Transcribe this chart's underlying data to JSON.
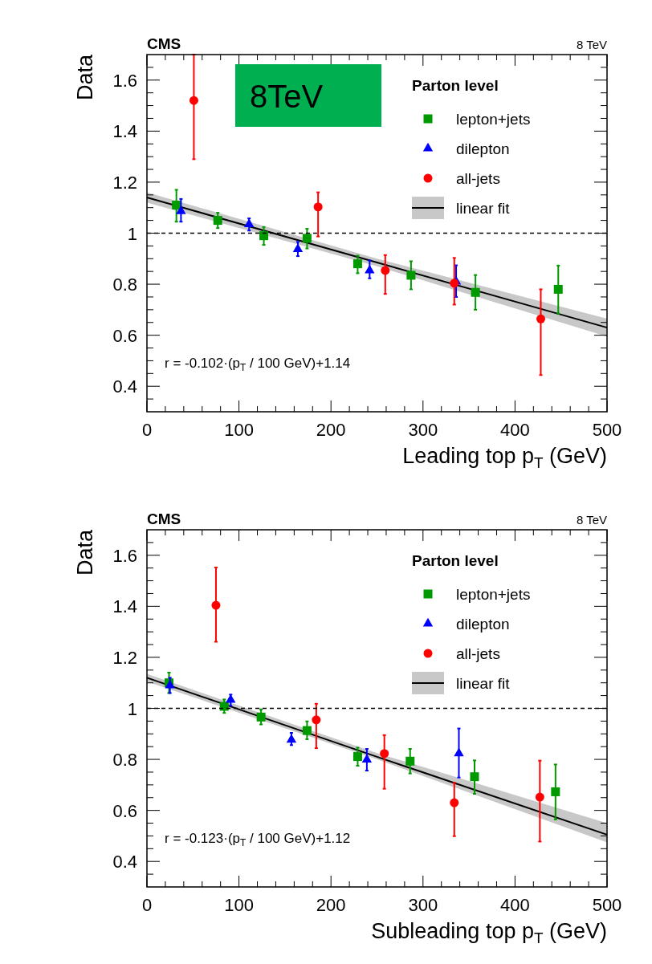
{
  "chart_data": [
    {
      "type": "scatter",
      "ylabel": "Data",
      "xlabel": "Leading top p$_{T}$ (GeV)",
      "legend_title": "Parton level",
      "legend": "top right",
      "xlim": [
        0,
        500
      ],
      "ylim": [
        0.3,
        1.7
      ],
      "xticks": [
        0,
        {
          "value": 20,
          "label": null
        },
        {
          "value": 40,
          "label": null
        },
        {
          "value": 60,
          "label": null
        },
        {
          "value": 80,
          "label": null
        },
        100,
        {
          "value": 120,
          "label": null
        },
        {
          "value": 140,
          "label": null
        },
        {
          "value": 160,
          "label": null
        },
        {
          "value": 180,
          "label": null
        },
        200,
        {
          "value": 220,
          "label": null
        },
        {
          "value": 240,
          "label": null
        },
        {
          "value": 260,
          "label": null
        },
        {
          "value": 280,
          "label": null
        },
        300,
        {
          "value": 320,
          "label": null
        },
        {
          "value": 340,
          "label": null
        },
        {
          "value": 360,
          "label": null
        },
        {
          "value": 380,
          "label": null
        },
        400,
        {
          "value": 420,
          "label": null
        },
        {
          "value": 440,
          "label": null
        },
        {
          "value": 460,
          "label": null
        },
        {
          "value": 480,
          "label": null
        },
        500
      ],
      "yticks": [
        {
          "value": 0.35,
          "label": null
        },
        0.4,
        {
          "value": 0.45,
          "label": null
        },
        {
          "value": 0.5,
          "label": null
        },
        {
          "value": 0.55,
          "label": null
        },
        0.6,
        {
          "value": 0.65,
          "label": null
        },
        {
          "value": 0.7,
          "label": null
        },
        {
          "value": 0.75,
          "label": null
        },
        0.8,
        {
          "value": 0.85,
          "label": null
        },
        {
          "value": 0.9,
          "label": null
        },
        {
          "value": 0.95,
          "label": null
        },
        1,
        {
          "value": 1.05,
          "label": null
        },
        {
          "value": 1.1,
          "label": null
        },
        {
          "value": 1.15,
          "label": null
        },
        1.2,
        {
          "value": 1.25,
          "label": null
        },
        {
          "value": 1.3,
          "label": null
        },
        {
          "value": 1.35,
          "label": null
        },
        1.4,
        {
          "value": 1.45,
          "label": null
        },
        {
          "value": 1.5,
          "label": null
        },
        {
          "value": 1.55,
          "label": null
        },
        1.6,
        {
          "value": 1.65,
          "label": null
        }
      ],
      "ref_lines": [
        {
          "axis": "y",
          "value": 1,
          "line_style": "dashed",
          "color": "#000000"
        }
      ],
      "annotations": [
        "CMS",
        "8 TeV",
        "r = -0.102·(p$_{T}$ / 100 GeV)+1.14",
        "8TeV"
      ],
      "series": [
        {
          "name": "lepton+jets",
          "marker": "square",
          "color": "#009900",
          "x": [
            32,
            77,
            127,
            174,
            229,
            287,
            357,
            447
          ],
          "values": [
            1.11,
            1.05,
            0.99,
            0.98,
            0.88,
            0.835,
            0.768,
            0.78
          ],
          "errors": [
            [
              1.045,
              1.17
            ],
            [
              1.02,
              1.08
            ],
            [
              0.954,
              1.024
            ],
            [
              0.94,
              1.017
            ],
            [
              0.843,
              0.912
            ],
            [
              0.78,
              0.89
            ],
            [
              0.7,
              0.836
            ],
            [
              0.685,
              0.873
            ]
          ]
        },
        {
          "name": "dilepton",
          "marker": "triangle",
          "color": "#0000ff",
          "x": [
            37,
            111,
            164,
            242,
            336
          ],
          "values": [
            1.086,
            1.035,
            0.937,
            0.854,
            0.81
          ],
          "errors": [
            [
              1.045,
              1.134
            ],
            [
              1.01,
              1.058
            ],
            [
              0.91,
              0.966
            ],
            [
              0.823,
              0.893
            ],
            [
              0.75,
              0.874
            ]
          ]
        },
        {
          "name": "all-jets",
          "marker": "circle",
          "color": "#ff0000",
          "x": [
            51,
            186,
            259,
            334,
            428
          ],
          "values": [
            1.52,
            1.103,
            0.854,
            0.804,
            0.664
          ],
          "errors": [
            [
              1.29,
              1.7
            ],
            [
              0.987,
              1.16
            ],
            [
              0.762,
              0.914
            ],
            [
              0.72,
              0.903
            ],
            [
              0.444,
              0.78
            ]
          ]
        },
        {
          "name": "linear fit",
          "type": "line",
          "color": "#000000",
          "x": [
            0,
            250,
            500
          ],
          "values": [
            1.14,
            0.885,
            0.63
          ],
          "lower": [
            1.12,
            0.87,
            0.595
          ],
          "upper": [
            1.16,
            0.9,
            0.665
          ]
        }
      ]
    },
    {
      "type": "scatter",
      "ylabel": "Data",
      "xlabel": "Subleading top p$_{T}$ (GeV)",
      "legend_title": "Parton level",
      "legend": "top right",
      "xlim": [
        0,
        500
      ],
      "ylim": [
        0.3,
        1.7
      ],
      "xticks": [
        0,
        {
          "value": 20,
          "label": null
        },
        {
          "value": 40,
          "label": null
        },
        {
          "value": 60,
          "label": null
        },
        {
          "value": 80,
          "label": null
        },
        100,
        {
          "value": 120,
          "label": null
        },
        {
          "value": 140,
          "label": null
        },
        {
          "value": 160,
          "label": null
        },
        {
          "value": 180,
          "label": null
        },
        200,
        {
          "value": 220,
          "label": null
        },
        {
          "value": 240,
          "label": null
        },
        {
          "value": 260,
          "label": null
        },
        {
          "value": 280,
          "label": null
        },
        300,
        {
          "value": 320,
          "label": null
        },
        {
          "value": 340,
          "label": null
        },
        {
          "value": 360,
          "label": null
        },
        {
          "value": 380,
          "label": null
        },
        400,
        {
          "value": 420,
          "label": null
        },
        {
          "value": 440,
          "label": null
        },
        {
          "value": 460,
          "label": null
        },
        {
          "value": 480,
          "label": null
        },
        500
      ],
      "yticks": [
        {
          "value": 0.35,
          "label": null
        },
        0.4,
        {
          "value": 0.45,
          "label": null
        },
        {
          "value": 0.5,
          "label": null
        },
        {
          "value": 0.55,
          "label": null
        },
        0.6,
        {
          "value": 0.65,
          "label": null
        },
        {
          "value": 0.7,
          "label": null
        },
        {
          "value": 0.75,
          "label": null
        },
        0.8,
        {
          "value": 0.85,
          "label": null
        },
        {
          "value": 0.9,
          "label": null
        },
        {
          "value": 0.95,
          "label": null
        },
        1,
        {
          "value": 1.05,
          "label": null
        },
        {
          "value": 1.1,
          "label": null
        },
        {
          "value": 1.15,
          "label": null
        },
        1.2,
        {
          "value": 1.25,
          "label": null
        },
        {
          "value": 1.3,
          "label": null
        },
        {
          "value": 1.35,
          "label": null
        },
        1.4,
        {
          "value": 1.45,
          "label": null
        },
        {
          "value": 1.5,
          "label": null
        },
        {
          "value": 1.55,
          "label": null
        },
        1.6,
        {
          "value": 1.65,
          "label": null
        }
      ],
      "ref_lines": [
        {
          "axis": "y",
          "value": 1,
          "line_style": "dashed",
          "color": "#000000"
        }
      ],
      "annotations": [
        "CMS",
        "8 TeV",
        "r = -0.123·(p$_{T}$ / 100 GeV)+1.12"
      ],
      "series": [
        {
          "name": "lepton+jets",
          "marker": "square",
          "color": "#009900",
          "x": [
            24,
            84,
            124,
            174,
            229,
            286,
            356,
            444
          ],
          "values": [
            1.1,
            1.008,
            0.966,
            0.913,
            0.811,
            0.793,
            0.732,
            0.673
          ],
          "errors": [
            [
              1.06,
              1.14
            ],
            [
              0.982,
              1.035
            ],
            [
              0.937,
              0.996
            ],
            [
              0.879,
              0.949
            ],
            [
              0.775,
              0.846
            ],
            [
              0.745,
              0.841
            ],
            [
              0.665,
              0.796
            ],
            [
              0.565,
              0.78
            ]
          ]
        },
        {
          "name": "dilepton",
          "marker": "triangle",
          "color": "#0000ff",
          "x": [
            25,
            91,
            157,
            239,
            339
          ],
          "values": [
            1.09,
            1.033,
            0.877,
            0.799,
            0.823
          ],
          "errors": [
            [
              1.06,
              1.12
            ],
            [
              1.01,
              1.054
            ],
            [
              0.856,
              0.904
            ],
            [
              0.756,
              0.841
            ],
            [
              0.729,
              0.921
            ]
          ]
        },
        {
          "name": "all-jets",
          "marker": "circle",
          "color": "#ff0000",
          "x": [
            75,
            184,
            258,
            334,
            427
          ],
          "values": [
            1.404,
            0.955,
            0.823,
            0.63,
            0.652
          ],
          "errors": [
            [
              1.261,
              1.552
            ],
            [
              0.844,
              1.018
            ],
            [
              0.685,
              0.895
            ],
            [
              0.499,
              0.708
            ],
            [
              0.478,
              0.795
            ]
          ]
        },
        {
          "name": "linear fit",
          "type": "line",
          "color": "#000000",
          "x": [
            0,
            250,
            500
          ],
          "values": [
            1.12,
            0.81,
            0.505
          ],
          "lower": [
            1.105,
            0.8,
            0.475
          ],
          "upper": [
            1.135,
            0.825,
            0.55
          ]
        }
      ]
    }
  ]
}
